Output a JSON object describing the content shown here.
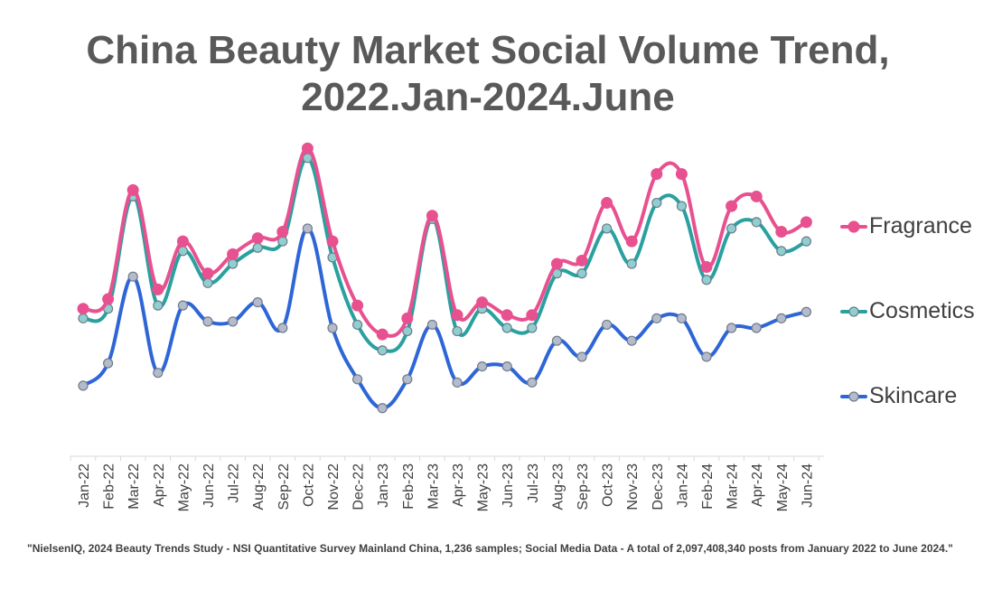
{
  "title": {
    "line1": "China Beauty Market Social Volume Trend,",
    "line2": "2022.Jan-2024.June"
  },
  "footnote": "\"NielsenIQ, 2024 Beauty Trends Study - NSI Quantitative Survey Mainland China, 1,236 samples;  Social Media Data - A total of 2,097,408,340  posts  from January 2022  to June 2024.\"",
  "legend": [
    {
      "label": "Fragrance",
      "color": "#e8518f"
    },
    {
      "label": "Cosmetics",
      "color": "#2aa0a0"
    },
    {
      "label": "Skincare",
      "color": "#2e66d8"
    }
  ],
  "chart_data": {
    "type": "line",
    "x_unit": "relative index (no value axis printed)",
    "categories": [
      "Jan-22",
      "Feb-22",
      "Mar-22",
      "Apr-22",
      "May-22",
      "Jun-22",
      "Jul-22",
      "Aug-22",
      "Sep-22",
      "Oct-22",
      "Nov-22",
      "Dec-22",
      "Jan-23",
      "Feb-23",
      "Mar-23",
      "Apr-23",
      "May-23",
      "Jun-23",
      "Jul-23",
      "Aug-23",
      "Sep-23",
      "Oct-23",
      "Nov-23",
      "Dec-23",
      "Jan-24",
      "Feb-24",
      "Mar-24",
      "Apr-24",
      "May-24",
      "Jun-24"
    ],
    "ylim": [
      0,
      100
    ],
    "grid": false,
    "legend_position": "right",
    "marker_color": "#b4bccc",
    "series": [
      {
        "name": "Fragrance",
        "color": "#e8518f",
        "marker": "#e8518f",
        "values": [
          46,
          49,
          83,
          52,
          67,
          57,
          63,
          68,
          70,
          96,
          67,
          47,
          38,
          43,
          75,
          44,
          48,
          44,
          44,
          60,
          61,
          79,
          67,
          88,
          88,
          59,
          78,
          81,
          70,
          73
        ]
      },
      {
        "name": "Cosmetics",
        "color": "#2aa0a0",
        "marker": "#8ecfcf",
        "values": [
          43,
          46,
          81,
          47,
          64,
          54,
          60,
          65,
          67,
          93,
          62,
          41,
          33,
          39,
          74,
          39,
          46,
          40,
          40,
          57,
          57,
          71,
          60,
          79,
          78,
          55,
          71,
          73,
          64,
          67
        ]
      },
      {
        "name": "Skincare",
        "color": "#2e66d8",
        "marker": "#b4bccc",
        "values": [
          22,
          29,
          56,
          26,
          47,
          42,
          42,
          48,
          40,
          71,
          40,
          24,
          15,
          24,
          41,
          23,
          28,
          28,
          23,
          36,
          31,
          41,
          36,
          43,
          43,
          31,
          40,
          40,
          43,
          45
        ]
      }
    ]
  }
}
